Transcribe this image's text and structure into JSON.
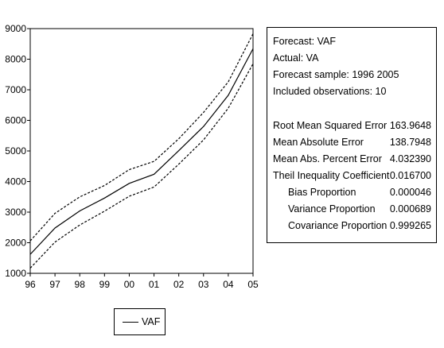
{
  "chart_data": {
    "type": "line",
    "categories": [
      "96",
      "97",
      "98",
      "99",
      "00",
      "01",
      "02",
      "03",
      "04",
      "05"
    ],
    "ylim": [
      1000,
      9000
    ],
    "yticks": [
      1000,
      2000,
      3000,
      4000,
      5000,
      6000,
      7000,
      8000,
      9000
    ],
    "grid": false,
    "legend_placement": "bottom-center",
    "series": [
      {
        "name": "VAF",
        "style": "solid",
        "values": [
          1620,
          2480,
          3040,
          3460,
          3940,
          4240,
          5010,
          5800,
          6820,
          8340
        ]
      },
      {
        "name": "",
        "style": "dashed",
        "values": [
          2060,
          2960,
          3500,
          3870,
          4390,
          4660,
          5400,
          6260,
          7260,
          8830
        ]
      },
      {
        "name": "",
        "style": "dashed",
        "values": [
          1170,
          2020,
          2580,
          3030,
          3520,
          3820,
          4570,
          5360,
          6400,
          7850
        ]
      }
    ]
  },
  "stats": {
    "header": [
      "Forecast: VAF",
      "Actual: VA",
      "Forecast sample: 1996 2005",
      "Included observations: 10"
    ],
    "rows": [
      {
        "label": "Root Mean Squared Error",
        "value": "163.9648",
        "indent": false
      },
      {
        "label": "Mean Absolute Error",
        "value": "138.7948",
        "indent": false
      },
      {
        "label": "Mean Abs. Percent Error",
        "value": "4.032390",
        "indent": false
      },
      {
        "label": "Theil Inequality Coefficient",
        "value": "0.016700",
        "indent": false
      },
      {
        "label": "Bias Proportion",
        "value": "0.000046",
        "indent": true
      },
      {
        "label": "Variance Proportion",
        "value": "0.000689",
        "indent": true
      },
      {
        "label": "Covariance Proportion",
        "value": "0.999265",
        "indent": true
      }
    ]
  },
  "legend": {
    "label": "VAF"
  },
  "colors": {
    "line": "#000000",
    "background": "#ffffff"
  }
}
